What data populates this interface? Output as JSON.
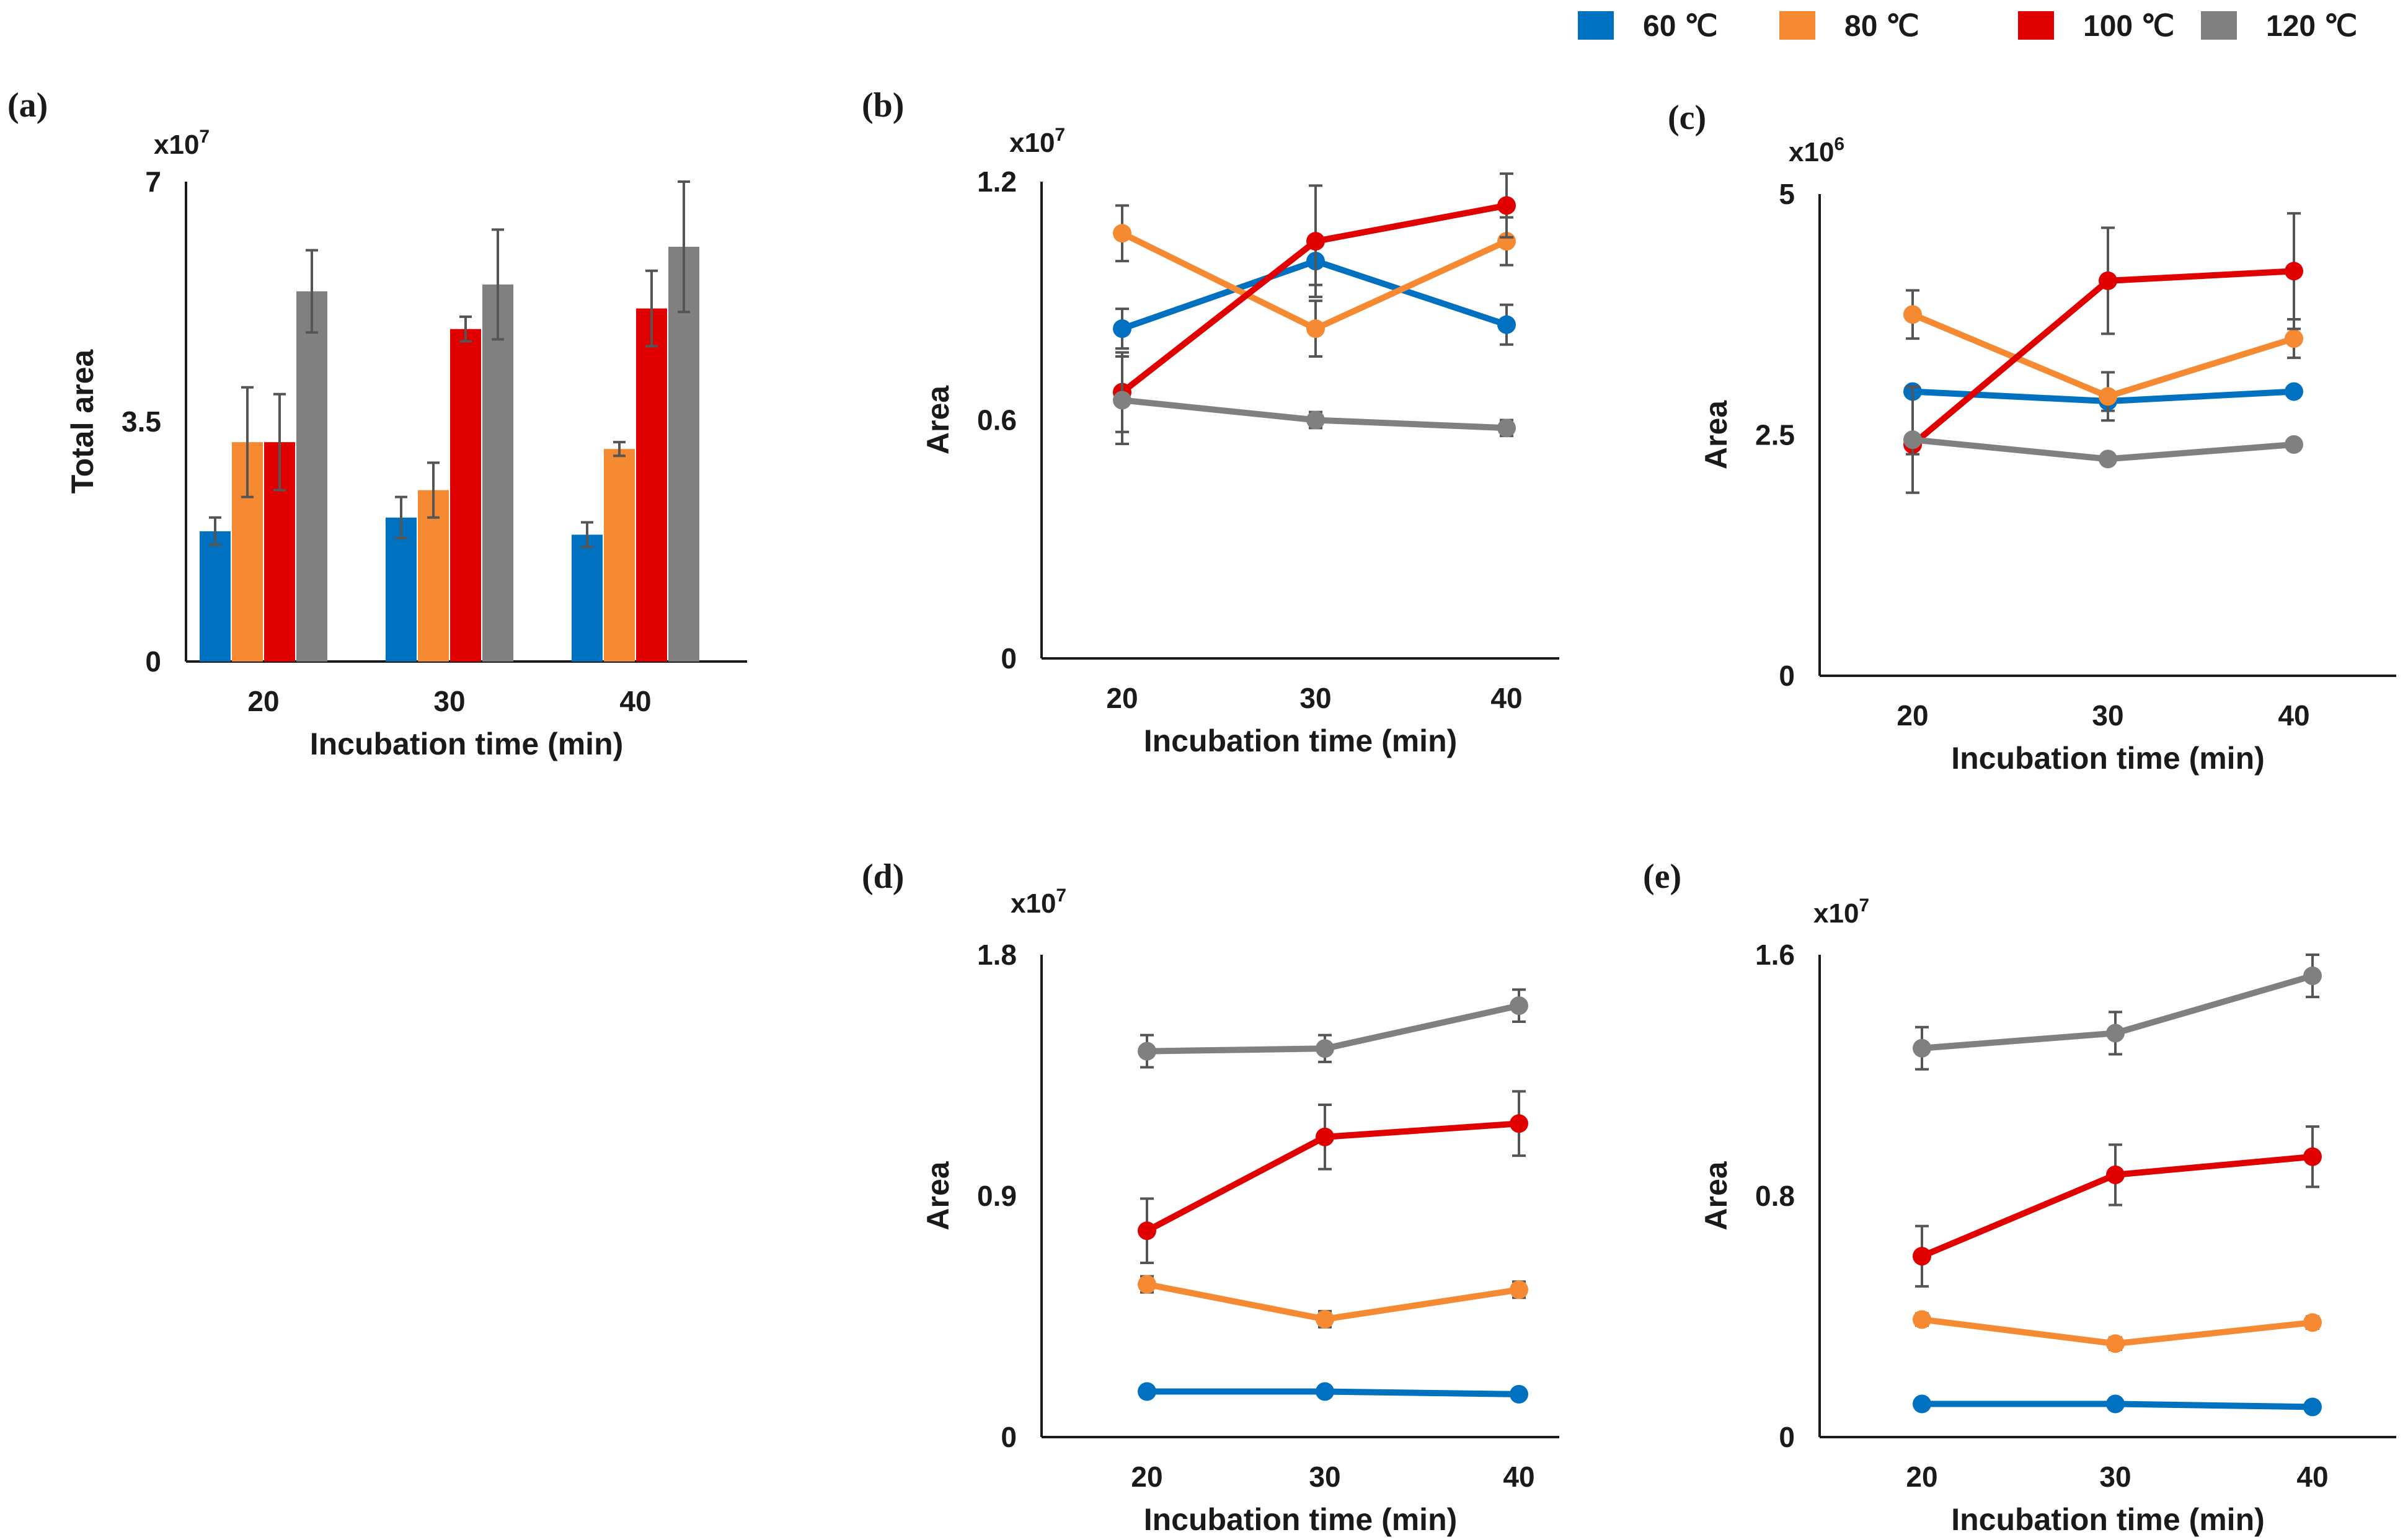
{
  "legend": [
    {
      "label": "60 ℃",
      "color": "#0070C0"
    },
    {
      "label": "80 ℃",
      "color": "#F58A33"
    },
    {
      "label": "100 ℃",
      "color": "#E00000"
    },
    {
      "label": "120 ℃",
      "color": "#808080"
    }
  ],
  "chart_data": [
    {
      "panel": "(a)",
      "type": "bar",
      "categories": [
        "20",
        "30",
        "40"
      ],
      "xlabel": "Incubation time (min)",
      "ylabel": "Total area",
      "exponent_base": "x10",
      "exponent_power": "7",
      "ylim": [
        0,
        7
      ],
      "yticks": [
        0,
        3.5,
        7
      ],
      "ytick_labels": [
        "0",
        "3.5",
        "7"
      ],
      "series": [
        {
          "name": "60 ℃",
          "values": [
            1.9,
            2.1,
            1.85
          ],
          "errors": [
            0.2,
            0.3,
            0.18
          ]
        },
        {
          "name": "80 ℃",
          "values": [
            3.2,
            2.5,
            3.1
          ],
          "errors": [
            0.8,
            0.4,
            0.1
          ]
        },
        {
          "name": "100 ℃",
          "values": [
            3.2,
            4.85,
            5.15
          ],
          "errors": [
            0.7,
            0.18,
            0.55
          ]
        },
        {
          "name": "120 ℃",
          "values": [
            5.4,
            5.5,
            6.05
          ],
          "errors": [
            0.6,
            0.8,
            0.95
          ]
        }
      ]
    },
    {
      "panel": "(b)",
      "type": "line",
      "x": [
        "20",
        "30",
        "40"
      ],
      "xlabel": "Incubation time (min)",
      "ylabel": "Area",
      "exponent_base": "x10",
      "exponent_power": "7",
      "ylim": [
        0,
        1.2
      ],
      "yticks": [
        0,
        0.6,
        1.2
      ],
      "ytick_labels": [
        "0",
        "0.6",
        "1.2"
      ],
      "series": [
        {
          "name": "60 ℃",
          "values": [
            0.83,
            1.0,
            0.84
          ],
          "errors": [
            0.05,
            0.06,
            0.05
          ]
        },
        {
          "name": "80 ℃",
          "values": [
            1.07,
            0.83,
            1.05
          ],
          "errors": [
            0.07,
            0.07,
            0.06
          ]
        },
        {
          "name": "100 ℃",
          "values": [
            0.67,
            1.05,
            1.14
          ],
          "errors": [
            0.1,
            0.14,
            0.08
          ]
        },
        {
          "name": "120 ℃",
          "values": [
            0.65,
            0.6,
            0.58
          ],
          "errors": [
            0.11,
            0.02,
            0.02
          ]
        }
      ]
    },
    {
      "panel": "(c)",
      "type": "line",
      "x": [
        "20",
        "30",
        "40"
      ],
      "xlabel": "Incubation time (min)",
      "ylabel": "Area",
      "exponent_base": "x10",
      "exponent_power": "6",
      "ylim": [
        0,
        5
      ],
      "yticks": [
        0,
        2.5,
        5
      ],
      "ytick_labels": [
        "0",
        "2.5",
        "5"
      ],
      "series": [
        {
          "name": "60 ℃",
          "values": [
            2.95,
            2.85,
            2.95
          ],
          "errors": [
            0.05,
            0.1,
            0.05
          ]
        },
        {
          "name": "80 ℃",
          "values": [
            3.75,
            2.9,
            3.5
          ],
          "errors": [
            0.25,
            0.25,
            0.2
          ]
        },
        {
          "name": "100 ℃",
          "values": [
            2.4,
            4.1,
            4.2
          ],
          "errors": [
            0.1,
            0.55,
            0.6
          ]
        },
        {
          "name": "120 ℃",
          "values": [
            2.45,
            2.25,
            2.4
          ],
          "errors": [
            0.55,
            0.05,
            0.05
          ]
        }
      ]
    },
    {
      "panel": "(d)",
      "type": "line",
      "x": [
        "20",
        "30",
        "40"
      ],
      "xlabel": "Incubation time (min)",
      "ylabel": "Area",
      "exponent_base": "x10",
      "exponent_power": "7",
      "ylim": [
        0,
        1.8
      ],
      "yticks": [
        0,
        0.9,
        1.8
      ],
      "ytick_labels": [
        "0",
        "0.9",
        "1.8"
      ],
      "series": [
        {
          "name": "60 ℃",
          "values": [
            0.17,
            0.17,
            0.16
          ],
          "errors": [
            0.01,
            0.01,
            0.01
          ]
        },
        {
          "name": "80 ℃",
          "values": [
            0.57,
            0.44,
            0.55
          ],
          "errors": [
            0.03,
            0.03,
            0.03
          ]
        },
        {
          "name": "100 ℃",
          "values": [
            0.77,
            1.12,
            1.17
          ],
          "errors": [
            0.12,
            0.12,
            0.12
          ]
        },
        {
          "name": "120 ℃",
          "values": [
            1.44,
            1.45,
            1.61
          ],
          "errors": [
            0.06,
            0.05,
            0.06
          ]
        }
      ]
    },
    {
      "panel": "(e)",
      "type": "line",
      "x": [
        "20",
        "30",
        "40"
      ],
      "xlabel": "Incubation time (min)",
      "ylabel": "Area",
      "exponent_base": "x10",
      "exponent_power": "7",
      "ylim": [
        0,
        1.6
      ],
      "yticks": [
        0,
        0.8,
        1.6
      ],
      "ytick_labels": [
        "0",
        "0.8",
        "1.6"
      ],
      "series": [
        {
          "name": "60 ℃",
          "values": [
            0.11,
            0.11,
            0.1
          ],
          "errors": [
            0.01,
            0.01,
            0.01
          ]
        },
        {
          "name": "80 ℃",
          "values": [
            0.39,
            0.31,
            0.38
          ],
          "errors": [
            0.02,
            0.02,
            0.02
          ]
        },
        {
          "name": "100 ℃",
          "values": [
            0.6,
            0.87,
            0.93
          ],
          "errors": [
            0.1,
            0.1,
            0.1
          ]
        },
        {
          "name": "120 ℃",
          "values": [
            1.29,
            1.34,
            1.53
          ],
          "errors": [
            0.07,
            0.07,
            0.07
          ]
        }
      ]
    }
  ]
}
